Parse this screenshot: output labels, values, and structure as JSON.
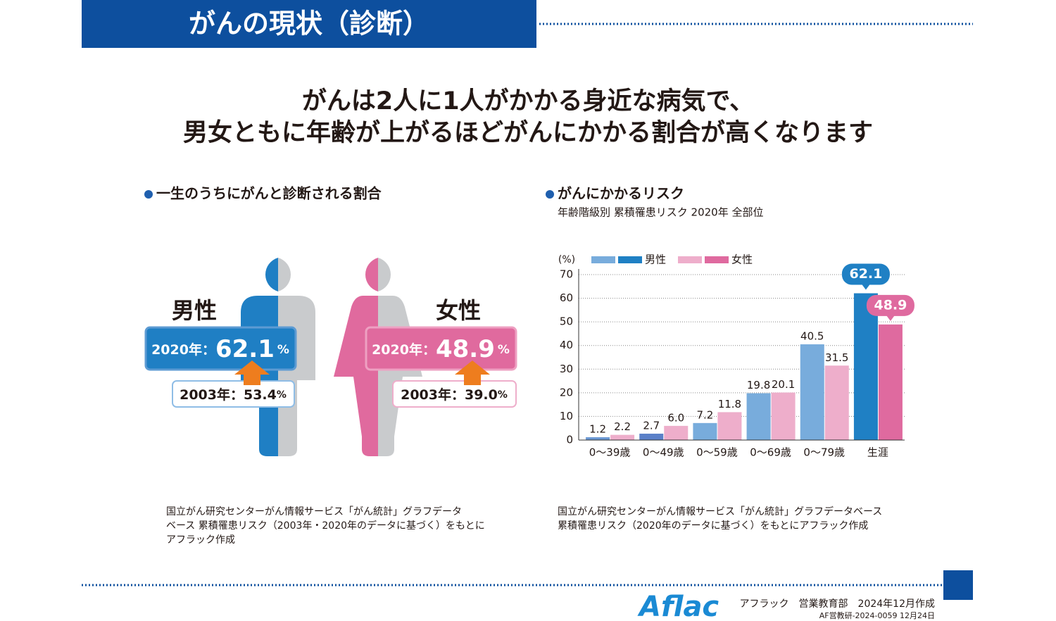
{
  "header": {
    "title": "がんの現状（診断）"
  },
  "headline": [
    "がんは2人に1人がかかる身近な病気で、",
    "男女ともに年齢が上がるほどがんにかかる割合が高くなります"
  ],
  "lifetime_panel": {
    "title": "一生のうちにがんと診断される割合",
    "male": {
      "name": "男性",
      "current_year": "2020年：",
      "current_value": "62.1",
      "current_unit": "%",
      "previous_year": "2003年：",
      "previous_value": "53.4",
      "previous_unit": "%"
    },
    "female": {
      "name": "女性",
      "current_year": "2020年：",
      "current_value": "48.9",
      "current_unit": "%",
      "previous_year": "2003年：",
      "previous_value": "39.0",
      "previous_unit": "%"
    },
    "source": [
      "国立がん研究センターがん情報サービス「がん統計」グラフデータ",
      "ベース 累積罹患リスク（2003年・2020年のデータに基づく）をもとに",
      "アフラック作成"
    ]
  },
  "chart_data": {
    "type": "bar",
    "title": "がんにかかるリスク",
    "subtitle": "年齢階級別 累積罹患リスク 2020年 全部位",
    "y_label": "(%)",
    "categories": [
      "0〜39歳",
      "0〜49歳",
      "0〜59歳",
      "0〜69歳",
      "0〜79歳",
      "生涯"
    ],
    "series": [
      {
        "name": "男性",
        "values": [
          1.2,
          2.7,
          7.2,
          19.8,
          40.5,
          62.1
        ],
        "value_labels": [
          "1.2",
          "2.7",
          "7.2",
          "19.8",
          "40.5",
          "62.1"
        ],
        "colors": [
          "#6b98d3",
          "#5a80c8",
          "#78acdc",
          "#78acdc",
          "#78acdc",
          "#1f80c4"
        ],
        "legend_colors": [
          "#78acdc",
          "#1f80c4"
        ]
      },
      {
        "name": "女性",
        "values": [
          2.2,
          6.0,
          11.8,
          20.1,
          31.5,
          48.9
        ],
        "value_labels": [
          "2.2",
          "6.0",
          "11.8",
          "20.1",
          "31.5",
          "48.9"
        ],
        "colors": [
          "#eeaecb",
          "#eeaecb",
          "#eeaecb",
          "#eeaecb",
          "#eeaecb",
          "#df6a9f"
        ],
        "legend_colors": [
          "#eeaecb",
          "#df6a9f"
        ]
      }
    ],
    "ylim": [
      0,
      70
    ],
    "yticks": [
      0,
      10,
      20,
      30,
      40,
      50,
      60,
      70
    ],
    "grid": true,
    "source": [
      "国立がん研究センターがん情報サービス「がん統計」グラフデータベース",
      "累積罹患リスク（2020年のデータに基づく）をもとにアフラック作成"
    ]
  },
  "footer": {
    "logo": "Aflac",
    "department": "アフラック　営業教育部　2024年12月作成",
    "code": "AF営教研-2024-0059 12月24日"
  }
}
